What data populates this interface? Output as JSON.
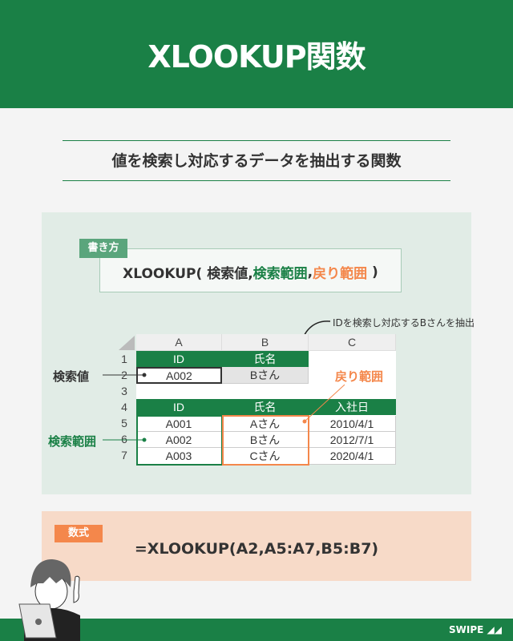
{
  "header": {
    "title": "XLOOKUP関数"
  },
  "subtitle": "値を検索し対応するデータを抽出する関数",
  "syntax": {
    "label": "書き方",
    "prefix": "XLOOKUP( 検索値,",
    "arg2": "検索範囲",
    ",": ",",
    "arg3": "戻り範囲",
    "suffix": " )"
  },
  "note": "IDを検索し対応するBさんを抽出",
  "sheet": {
    "columns": [
      "A",
      "B",
      "C"
    ],
    "rows": [
      "1",
      "2",
      "3",
      "4",
      "5",
      "6",
      "7"
    ],
    "lookup_header": [
      "ID",
      "氏名"
    ],
    "lookup_values": [
      "A002",
      "Bさん"
    ],
    "table_header": [
      "ID",
      "氏名",
      "入社日"
    ],
    "table": [
      [
        "A001",
        "Aさん",
        "2010/4/1"
      ],
      [
        "A002",
        "Bさん",
        "2012/7/1"
      ],
      [
        "A003",
        "Cさん",
        "2020/4/1"
      ]
    ]
  },
  "annotations": {
    "lookup_value": "検索値",
    "lookup_range": "検索範囲",
    "return_range": "戻り範囲"
  },
  "formula": {
    "label": "数式",
    "text": "=XLOOKUP(A2,A5:A7,B5:B7)"
  },
  "footer": {
    "swipe": "SWIPE"
  },
  "colors": {
    "green": "#1a8046",
    "orange": "#f4874b",
    "panel_green": "#e1ece6",
    "panel_orange": "#f7dac8"
  }
}
